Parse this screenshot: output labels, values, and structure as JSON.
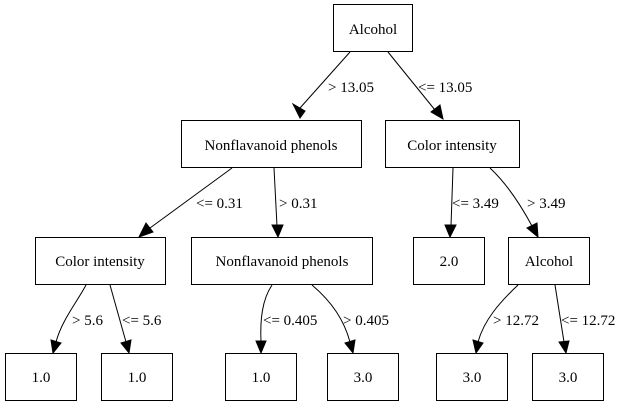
{
  "tree": {
    "nodes": {
      "root": "Alcohol",
      "n_left": "Nonflavanoid phenols",
      "n_right": "Color intensity",
      "n_ll": "Color intensity",
      "n_lr": "Nonflavanoid phenols",
      "n_rl": "2.0",
      "n_rr": "Alcohol",
      "leaf_1": "1.0",
      "leaf_2": "1.0",
      "leaf_3": "1.0",
      "leaf_4": "3.0",
      "leaf_5": "3.0",
      "leaf_6": "3.0"
    },
    "edges": {
      "root_left": "> 13.05",
      "root_right": "<= 13.05",
      "left_ll": "<= 0.31",
      "left_lr": "> 0.31",
      "right_rl": "<= 3.49",
      "right_rr": "> 3.49",
      "ll_1": "> 5.6",
      "ll_2": "<= 5.6",
      "lr_1": "<= 0.405",
      "lr_2": "> 0.405",
      "rr_1": "> 12.72",
      "rr_2": "<= 12.72"
    }
  }
}
